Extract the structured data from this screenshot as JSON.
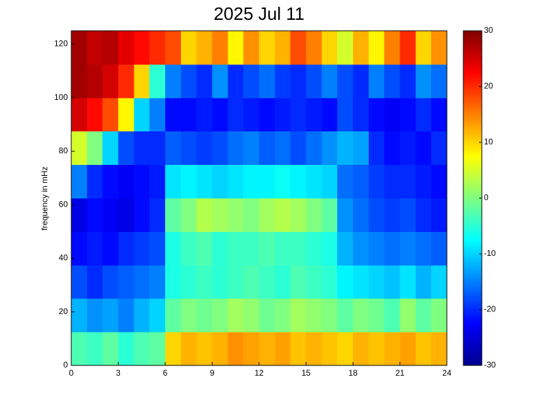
{
  "chart_data": {
    "type": "heatmap",
    "title": "2025 Jul 11",
    "y_label": "frequency in mHz",
    "colormap": "jet",
    "x": [
      0,
      1,
      2,
      3,
      4,
      5,
      6,
      7,
      8,
      9,
      10,
      11,
      12,
      13,
      14,
      15,
      16,
      17,
      18,
      19,
      20,
      21,
      22,
      23,
      24
    ],
    "y": [
      0,
      12.5,
      25,
      37.5,
      50,
      62.5,
      75,
      87.5,
      100,
      112.5,
      125
    ],
    "values": [
      [
        -3,
        -4,
        -2,
        -5,
        -3,
        -2,
        10,
        12,
        11,
        12,
        14,
        13,
        12,
        13,
        11,
        12,
        11,
        10,
        12,
        11,
        12,
        13,
        11,
        12
      ],
      [
        -12,
        -14,
        -13,
        -15,
        -12,
        -10,
        -2,
        0,
        -1,
        0,
        2,
        1,
        -1,
        0,
        2,
        1,
        0,
        -2,
        0,
        -1,
        -3,
        1,
        -2,
        0
      ],
      [
        -18,
        -20,
        -18,
        -17,
        -16,
        -15,
        -6,
        -5,
        -4,
        -5,
        -4,
        -3,
        -4,
        -5,
        -3,
        -4,
        -5,
        -8,
        -9,
        -10,
        -11,
        -9,
        -12,
        -10
      ],
      [
        -22,
        -21,
        -22,
        -20,
        -19,
        -18,
        -6,
        -4,
        -3,
        -5,
        -4,
        -4,
        -3,
        -4,
        -4,
        -5,
        -6,
        -12,
        -14,
        -15,
        -16,
        -15,
        -16,
        -17
      ],
      [
        -24,
        -22,
        -23,
        -24,
        -22,
        -20,
        -2,
        0,
        3,
        2,
        1,
        0,
        2,
        3,
        2,
        0,
        -2,
        -14,
        -16,
        -18,
        -19,
        -18,
        -20,
        -21
      ],
      [
        -15,
        -20,
        -22,
        -23,
        -22,
        -21,
        -9,
        -8,
        -9,
        -10,
        -9,
        -8,
        -8,
        -7,
        -8,
        -9,
        -10,
        -16,
        -17,
        -19,
        -20,
        -20,
        -21,
        -22
      ],
      [
        5,
        0,
        -10,
        -18,
        -20,
        -20,
        -17,
        -18,
        -19,
        -18,
        -16,
        -15,
        -17,
        -16,
        -18,
        -16,
        -14,
        -12,
        -13,
        -20,
        -22,
        -21,
        -22,
        -20
      ],
      [
        25,
        22,
        18,
        8,
        -10,
        -15,
        -22,
        -22,
        -21,
        -22,
        -20,
        -21,
        -22,
        -21,
        -20,
        -21,
        -22,
        -18,
        -20,
        -22,
        -23,
        -22,
        -20,
        -22
      ],
      [
        28,
        27,
        25,
        20,
        10,
        -5,
        -15,
        -18,
        -20,
        -14,
        -20,
        -18,
        -16,
        -19,
        -20,
        -18,
        -15,
        -18,
        -20,
        -15,
        -18,
        -20,
        -14,
        -16
      ],
      [
        28,
        26,
        27,
        24,
        22,
        20,
        18,
        10,
        12,
        15,
        8,
        14,
        10,
        12,
        18,
        15,
        10,
        5,
        12,
        8,
        15,
        20,
        10,
        14
      ]
    ],
    "xlim": [
      0,
      24
    ],
    "xticks": [
      0,
      3,
      6,
      9,
      12,
      15,
      18,
      21,
      24
    ],
    "ylim": [
      0,
      125
    ],
    "yticks": [
      0,
      20,
      40,
      60,
      80,
      100,
      120
    ],
    "clim": [
      -30,
      30
    ],
    "cticks": [
      -30,
      -20,
      -10,
      0,
      10,
      20,
      30
    ]
  }
}
